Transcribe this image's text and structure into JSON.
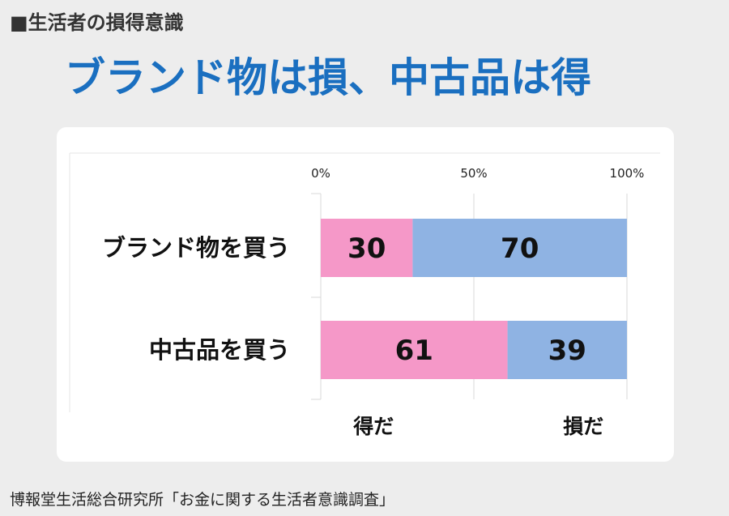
{
  "header": {
    "section_label": "■生活者の損得意識",
    "headline": "ブランド物は損、中古品は得"
  },
  "chart_data": {
    "type": "bar",
    "stacked": true,
    "orientation": "horizontal",
    "categories": [
      "ブランド物を買う",
      "中古品を買う"
    ],
    "series": [
      {
        "name": "得だ",
        "values": [
          30,
          61
        ],
        "color": "#f598c8"
      },
      {
        "name": "損だ",
        "values": [
          70,
          39
        ],
        "color": "#8fb3e3"
      }
    ],
    "xlim": [
      0,
      100
    ],
    "x_ticks": [
      "0%",
      "50%",
      "100%"
    ],
    "legend_position": "bottom",
    "grid": true
  },
  "footer": {
    "source": "博報堂生活総合研究所「お金に関する生活者意識調査」"
  }
}
